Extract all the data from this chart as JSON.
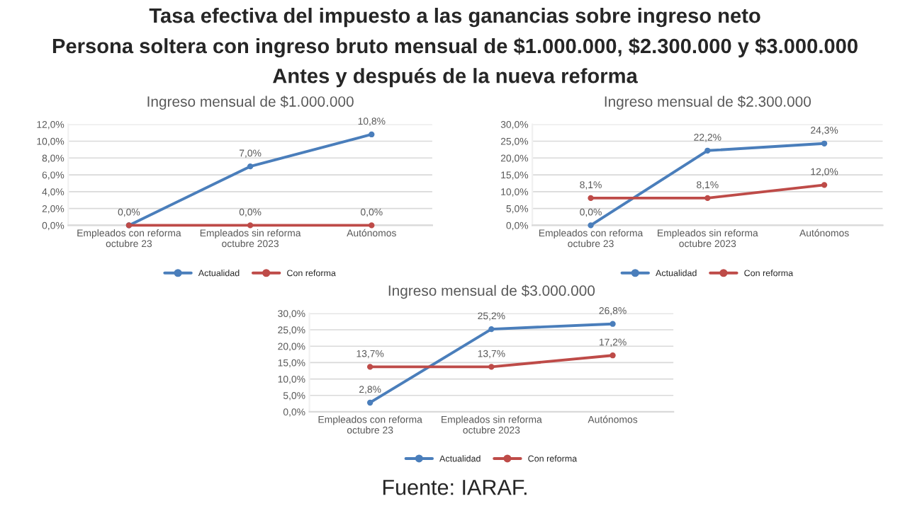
{
  "chart_data": [
    {
      "type": "line",
      "title": "Ingreso mensual de $1.000.000",
      "annotations": [
        "Tasa efectiva del impuesto a las ganancias sobre ingreso neto",
        "Persona soltera con ingreso bruto mensual de $1.000.000, $2.300.000 y $3.000.000",
        "Antes y después de la nueva reforma"
      ],
      "categories": [
        "Empleados con reforma\noctubre 23",
        "Empleados sin reforma\noctubre 2023",
        "Autónomos"
      ],
      "series": [
        {
          "name": "Actualidad",
          "color": "#4a7ebb",
          "values": [
            0.0,
            7.0,
            10.8
          ],
          "value_labels": [
            "0,0%",
            "7,0%",
            "10,8%"
          ]
        },
        {
          "name": "Con reforma",
          "color": "#be4b48",
          "values": [
            0.0,
            0.0,
            0.0
          ],
          "value_labels": [
            null,
            "0,0%",
            "0,0%"
          ]
        }
      ],
      "ylim": [
        0,
        12
      ],
      "yticks": [
        {
          "value": 0,
          "label": "0,0%"
        },
        {
          "value": 2,
          "label": "2,0%"
        },
        {
          "value": 4,
          "label": "4,0%"
        },
        {
          "value": 6,
          "label": "6,0%"
        },
        {
          "value": 8,
          "label": "8,0%"
        },
        {
          "value": 10,
          "label": "10,0%"
        },
        {
          "value": 12,
          "label": "12,0%"
        }
      ],
      "grid": "y",
      "legend": "bottom",
      "marker": "circle",
      "line_style": "solid"
    },
    {
      "type": "line",
      "title": "Ingreso mensual de $2.300.000",
      "categories": [
        "Empleados con reforma\noctubre 23",
        "Empleados sin reforma\noctubre 2023",
        "Autónomos"
      ],
      "series": [
        {
          "name": "Actualidad",
          "color": "#4a7ebb",
          "values": [
            0.0,
            22.2,
            24.3
          ],
          "value_labels": [
            "0,0%",
            "22,2%",
            "24,3%"
          ]
        },
        {
          "name": "Con reforma",
          "color": "#be4b48",
          "values": [
            8.1,
            8.1,
            12.0
          ],
          "value_labels": [
            "8,1%",
            "8,1%",
            "12,0%"
          ]
        }
      ],
      "ylim": [
        0,
        30
      ],
      "yticks": [
        {
          "value": 0,
          "label": "0,0%"
        },
        {
          "value": 5,
          "label": "5,0%"
        },
        {
          "value": 10,
          "label": "10,0%"
        },
        {
          "value": 15,
          "label": "15,0%"
        },
        {
          "value": 20,
          "label": "20,0%"
        },
        {
          "value": 25,
          "label": "25,0%"
        },
        {
          "value": 30,
          "label": "30,0%"
        }
      ],
      "grid": "y",
      "legend": "bottom",
      "marker": "circle",
      "line_style": "solid"
    },
    {
      "type": "line",
      "title": "Ingreso mensual de $3.000.000",
      "annotations": [
        "Fuente: IARAF."
      ],
      "categories": [
        "Empleados con reforma\noctubre 23",
        "Empleados sin reforma\noctubre 2023",
        "Autónomos"
      ],
      "series": [
        {
          "name": "Actualidad",
          "color": "#4a7ebb",
          "values": [
            2.8,
            25.2,
            26.8
          ],
          "value_labels": [
            "2,8%",
            "25,2%",
            "26,8%"
          ]
        },
        {
          "name": "Con reforma",
          "color": "#be4b48",
          "values": [
            13.7,
            13.7,
            17.2
          ],
          "value_labels": [
            "13,7%",
            "13,7%",
            "17,2%"
          ]
        }
      ],
      "ylim": [
        0,
        30
      ],
      "yticks": [
        {
          "value": 0,
          "label": "0,0%"
        },
        {
          "value": 5,
          "label": "5,0%"
        },
        {
          "value": 10,
          "label": "10,0%"
        },
        {
          "value": 15,
          "label": "15,0%"
        },
        {
          "value": 20,
          "label": "20,0%"
        },
        {
          "value": 25,
          "label": "25,0%"
        },
        {
          "value": 30,
          "label": "30,0%"
        }
      ],
      "grid": "y",
      "legend": "bottom",
      "marker": "circle",
      "line_style": "solid"
    }
  ]
}
